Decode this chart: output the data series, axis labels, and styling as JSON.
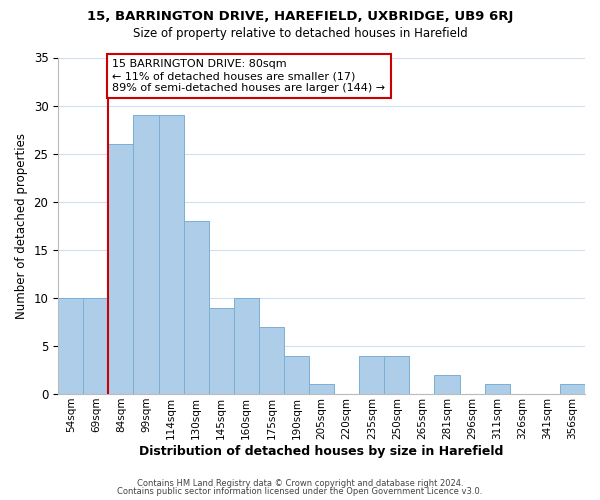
{
  "title1": "15, BARRINGTON DRIVE, HAREFIELD, UXBRIDGE, UB9 6RJ",
  "title2": "Size of property relative to detached houses in Harefield",
  "xlabel": "Distribution of detached houses by size in Harefield",
  "ylabel": "Number of detached properties",
  "bin_labels": [
    "54sqm",
    "69sqm",
    "84sqm",
    "99sqm",
    "114sqm",
    "130sqm",
    "145sqm",
    "160sqm",
    "175sqm",
    "190sqm",
    "205sqm",
    "220sqm",
    "235sqm",
    "250sqm",
    "265sqm",
    "281sqm",
    "296sqm",
    "311sqm",
    "326sqm",
    "341sqm",
    "356sqm"
  ],
  "bar_values": [
    10,
    10,
    26,
    29,
    29,
    18,
    9,
    10,
    7,
    4,
    1,
    0,
    4,
    4,
    0,
    2,
    0,
    1,
    0,
    0,
    1
  ],
  "bar_color": "#aecde8",
  "bar_edge_color": "#7bafd4",
  "vline_x_index": 2,
  "vline_color": "#cc0000",
  "ylim": [
    0,
    35
  ],
  "yticks": [
    0,
    5,
    10,
    15,
    20,
    25,
    30,
    35
  ],
  "annotation_line1": "15 BARRINGTON DRIVE: 80sqm",
  "annotation_line2": "← 11% of detached houses are smaller (17)",
  "annotation_line3": "89% of semi-detached houses are larger (144) →",
  "annotation_box_edgecolor": "#cc0000",
  "footer1": "Contains HM Land Registry data © Crown copyright and database right 2024.",
  "footer2": "Contains public sector information licensed under the Open Government Licence v3.0.",
  "background_color": "#ffffff",
  "grid_color": "#d0dff0"
}
